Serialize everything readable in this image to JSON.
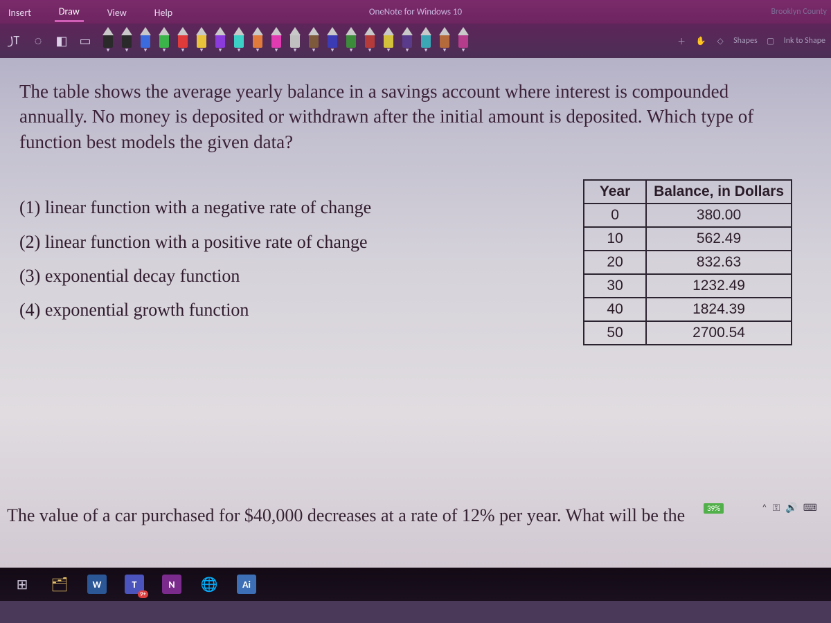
{
  "ribbon": {
    "tabs": [
      "Insert",
      "Draw",
      "View",
      "Help"
    ],
    "active_tab_index": 1,
    "app_title": "OneNote for Windows 10",
    "right_text": "Brooklyn County"
  },
  "tools": {
    "pen_colors": [
      "#2a2a2a",
      "#2a2a2a",
      "#3b6bdc",
      "#3bb54a",
      "#e03b3b",
      "#e9c23c",
      "#8b3bdc",
      "#3bd1c7",
      "#e07b3b",
      "#e03bb0",
      "#c0c0c0",
      "#7d5a3b",
      "#3b3bb5",
      "#3b8b3b",
      "#b53b3b",
      "#d4c13b",
      "#5a3b8b",
      "#3ba7b5",
      "#b56a3b",
      "#b53b8b"
    ],
    "shapes_label": "Shapes",
    "ink_to_shape_label": "Ink to Shape"
  },
  "question": {
    "text": "The table shows the average yearly balance in a savings account where interest is compounded annually.  No money is deposited or withdrawn after the initial amount is deposited. Which type of function best models the given data?",
    "options": [
      "(1)  linear function with a negative rate of change",
      "(2)  linear function with a positive rate of change",
      "(3)  exponential decay function",
      "(4)  exponential growth function"
    ],
    "partial_next": "The value of a car purchased for $40,000 decreases at a rate of 12% per year.  What will be the"
  },
  "table": {
    "columns": [
      "Year",
      "Balance, in Dollars"
    ],
    "rows": [
      [
        "0",
        "380.00"
      ],
      [
        "10",
        "562.49"
      ],
      [
        "20",
        "832.63"
      ],
      [
        "30",
        "1232.49"
      ],
      [
        "40",
        "1824.39"
      ],
      [
        "50",
        "2700.54"
      ]
    ],
    "border_color": "#2b2430",
    "font_family": "Arial"
  },
  "status": {
    "battery": "39%"
  },
  "taskbar": {
    "items": [
      {
        "name": "task-view",
        "glyph": "⊞",
        "color": "#cfc6da"
      },
      {
        "name": "file-explorer",
        "glyph": "🗂",
        "color": "#e8c36a"
      },
      {
        "name": "word",
        "letter": "W",
        "bg": "#2b5797",
        "fg": "#ffffff"
      },
      {
        "name": "teams",
        "letter": "T",
        "bg": "#4b53bc",
        "fg": "#ffffff",
        "badge": "9+"
      },
      {
        "name": "onenote",
        "letter": "N",
        "bg": "#7b2b8b",
        "fg": "#ffffff"
      },
      {
        "name": "edge",
        "glyph": "🌐",
        "color": "#3ea7d9"
      },
      {
        "name": "ai",
        "letter": "Ai",
        "bg": "#3c6fb5",
        "fg": "#ffffff"
      }
    ]
  }
}
